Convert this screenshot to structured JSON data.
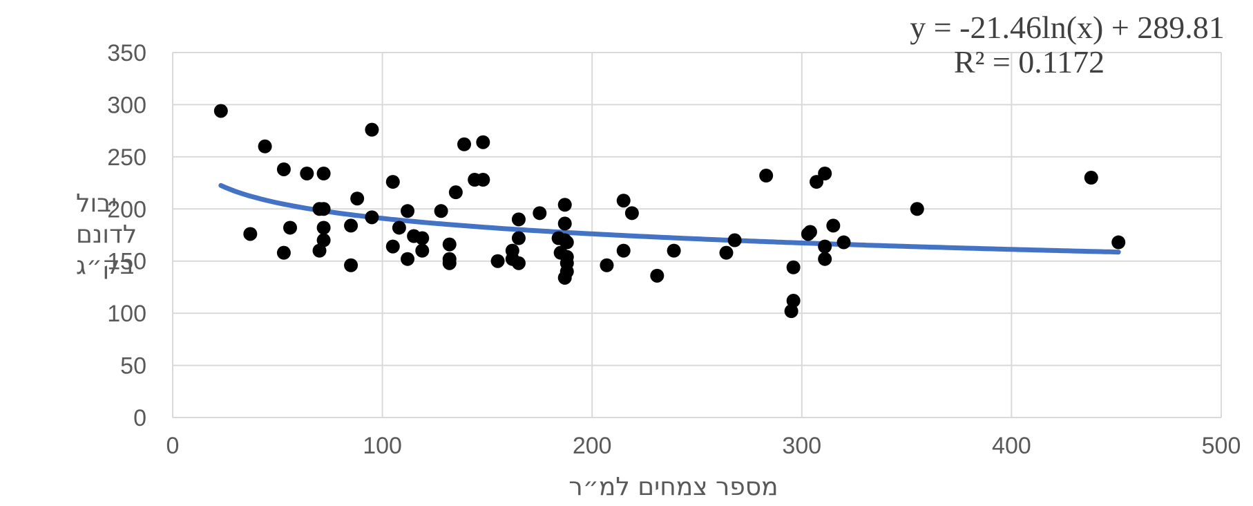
{
  "chart_data": {
    "type": "scatter",
    "title": "",
    "xlabel": "מספר צמחים למ״ר",
    "ylabel": "יבול לדונם בק״ג",
    "ylabel_lines": [
      "יבול",
      "לדונם",
      "בק״ג"
    ],
    "xlim": [
      0,
      500
    ],
    "ylim": [
      0,
      350
    ],
    "x_ticks": [
      0,
      100,
      200,
      300,
      400,
      500
    ],
    "y_ticks": [
      0,
      50,
      100,
      150,
      200,
      250,
      300,
      350
    ],
    "x_tick_labels": [
      "0",
      "100",
      "200",
      "300",
      "400",
      "500"
    ],
    "y_tick_labels": [
      "0",
      "50",
      "100",
      "150",
      "200",
      "250",
      "300",
      "350"
    ],
    "grid": true,
    "legend": "none",
    "marker_color": "#000000",
    "trendline": {
      "type": "logarithmic",
      "a": -21.46,
      "b": 289.81,
      "x_range": [
        23,
        451
      ],
      "color": "#4472c4",
      "equation_text": "y = -21.46ln(x) + 289.81",
      "r2_text": "R² = 0.1172"
    },
    "series": [
      {
        "points": [
          [
            23,
            294
          ],
          [
            37,
            176
          ],
          [
            44,
            260
          ],
          [
            53,
            238
          ],
          [
            53,
            158
          ],
          [
            56,
            182
          ],
          [
            64,
            234
          ],
          [
            70,
            200
          ],
          [
            70,
            160
          ],
          [
            72,
            234
          ],
          [
            72,
            200
          ],
          [
            72,
            182
          ],
          [
            72,
            170
          ],
          [
            85,
            184
          ],
          [
            85,
            146
          ],
          [
            88,
            210
          ],
          [
            95,
            276
          ],
          [
            95,
            192
          ],
          [
            105,
            226
          ],
          [
            105,
            164
          ],
          [
            108,
            182
          ],
          [
            112,
            198
          ],
          [
            112,
            152
          ],
          [
            115,
            174
          ],
          [
            119,
            172
          ],
          [
            119,
            160
          ],
          [
            128,
            198
          ],
          [
            132,
            166
          ],
          [
            132,
            152
          ],
          [
            132,
            148
          ],
          [
            135,
            216
          ],
          [
            139,
            262
          ],
          [
            144,
            228
          ],
          [
            148,
            264
          ],
          [
            148,
            228
          ],
          [
            155,
            150
          ],
          [
            162,
            160
          ],
          [
            162,
            152
          ],
          [
            165,
            190
          ],
          [
            165,
            172
          ],
          [
            165,
            148
          ],
          [
            175,
            196
          ],
          [
            184,
            172
          ],
          [
            185,
            158
          ],
          [
            187,
            204
          ],
          [
            187,
            186
          ],
          [
            187,
            170
          ],
          [
            188,
            168
          ],
          [
            188,
            154
          ],
          [
            188,
            148
          ],
          [
            188,
            140
          ],
          [
            187,
            134
          ],
          [
            207,
            146
          ],
          [
            215,
            208
          ],
          [
            215,
            160
          ],
          [
            219,
            196
          ],
          [
            231,
            136
          ],
          [
            239,
            160
          ],
          [
            264,
            158
          ],
          [
            268,
            170
          ],
          [
            283,
            232
          ],
          [
            295,
            102
          ],
          [
            296,
            144
          ],
          [
            296,
            112
          ],
          [
            303,
            176
          ],
          [
            304,
            178
          ],
          [
            307,
            226
          ],
          [
            311,
            234
          ],
          [
            311,
            164
          ],
          [
            311,
            152
          ],
          [
            315,
            184
          ],
          [
            320,
            168
          ],
          [
            355,
            200
          ],
          [
            438,
            230
          ],
          [
            451,
            168
          ]
        ]
      }
    ]
  }
}
